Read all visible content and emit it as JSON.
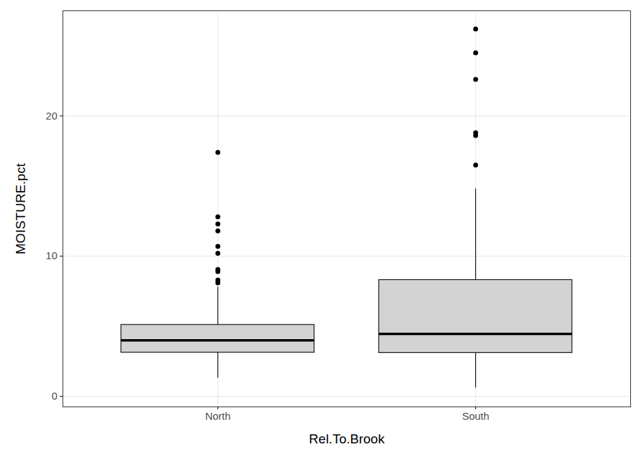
{
  "chart_data": {
    "type": "box",
    "x_label": "Rel.To.Brook",
    "y_label": "MOISTURE.pct",
    "categories": [
      "North",
      "South"
    ],
    "boxes": [
      {
        "whisker_low": 1.3,
        "q1": 3.12,
        "median": 4.0,
        "q3": 5.1,
        "whisker_high": 7.8,
        "outliers": [
          17.4,
          12.8,
          12.3,
          11.8,
          10.7,
          10.2,
          9.05,
          8.9,
          8.3,
          8.1
        ]
      },
      {
        "whisker_low": 0.6,
        "q1": 3.1,
        "median": 4.45,
        "q3": 8.3,
        "whisker_high": 14.8,
        "outliers": [
          26.2,
          24.5,
          22.6,
          18.8,
          18.6,
          16.5
        ]
      }
    ],
    "color": "#d3d3d3",
    "ylim": [
      -0.75,
      27.5
    ],
    "yticks": [
      0,
      10,
      20
    ],
    "grid": true
  }
}
